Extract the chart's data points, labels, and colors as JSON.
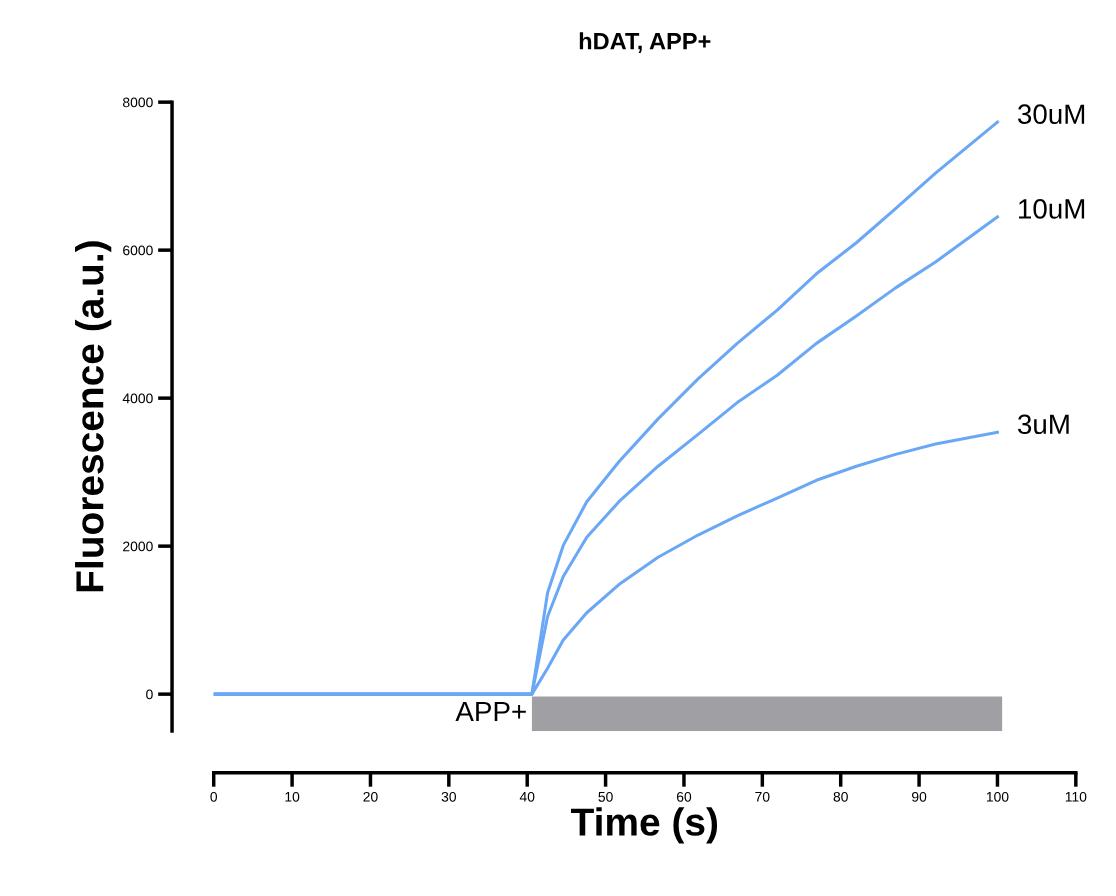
{
  "chart_data": {
    "type": "line",
    "title": "hDAT, APP+",
    "xlabel": "Time (s)",
    "ylabel": "Fluorescence (a.u.)",
    "x": [
      0,
      10,
      20,
      30,
      40.6,
      42.6,
      44.6,
      47.6,
      51.7,
      56.7,
      61.8,
      66.8,
      71.9,
      76.9,
      82.0,
      87.0,
      92.1,
      100
    ],
    "series": [
      {
        "name": "30uM",
        "color": "#6aa8f5",
        "values": [
          0,
          0,
          0,
          0,
          0,
          1370,
          2010,
          2600,
          3140,
          3720,
          4260,
          4740,
          5190,
          5680,
          6100,
          6560,
          7040,
          7730
        ]
      },
      {
        "name": "10uM",
        "color": "#6aa8f5",
        "values": [
          0,
          0,
          0,
          0,
          0,
          1050,
          1590,
          2120,
          2600,
          3080,
          3510,
          3940,
          4310,
          4740,
          5110,
          5490,
          5840,
          6450
        ]
      },
      {
        "name": "3uM",
        "color": "#6aa8f5",
        "values": [
          0,
          0,
          0,
          0,
          0,
          350,
          730,
          1100,
          1480,
          1850,
          2150,
          2410,
          2650,
          2890,
          3080,
          3240,
          3380,
          3540
        ]
      }
    ],
    "xlim": [
      0,
      110
    ],
    "xticks": [
      0,
      10,
      20,
      30,
      40,
      50,
      60,
      70,
      80,
      90,
      100,
      110
    ],
    "ylim": [
      -500,
      8000
    ],
    "yticks": [
      0,
      2000,
      4000,
      6000,
      8000
    ],
    "bands": [
      {
        "axis": "x",
        "from": 40.6,
        "to": 100.6,
        "label": "APP+",
        "color": "#a0a0a4"
      }
    ],
    "grid": false,
    "legend": false,
    "marker": "none",
    "line_style": "solid"
  }
}
